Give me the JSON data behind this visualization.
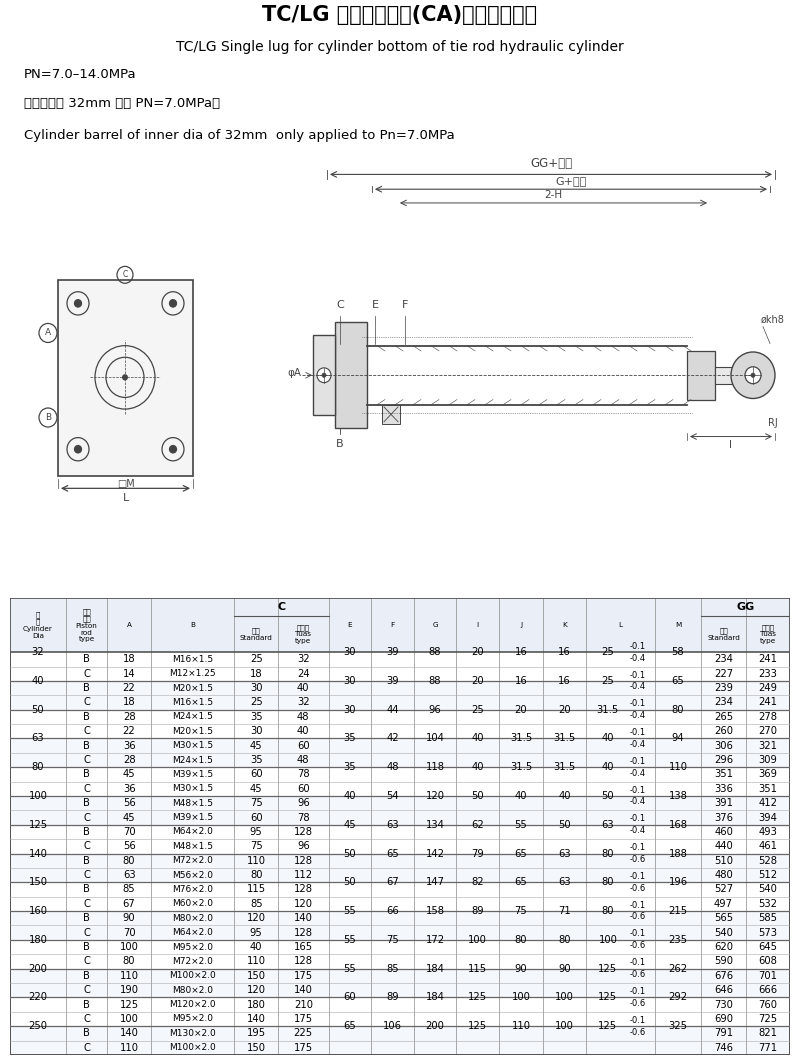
{
  "title_cn": "TC/LG 缸底单耳环型(CA)拉杆式液压缸",
  "title_en": "TC/LG Single lug for cylinder bottom of tie rod hydraulic cylinder",
  "subtitle1": "PN=7.0–14.0MPa",
  "subtitle2": "（缸筒内径 32mm 仅用 PN=7.0MPa）",
  "subtitle3": "Cylinder barrel of inner dia of 32mm  only applied to Pn=7.0MPa",
  "table_data": [
    [
      32,
      "B",
      18,
      "M16×1.5",
      25,
      32,
      30,
      39,
      88,
      20,
      16,
      16,
      "25",
      "-0.1\n-0.4",
      58,
      234,
      241
    ],
    [
      32,
      "C",
      14,
      "M12×1.25",
      18,
      24,
      30,
      39,
      88,
      20,
      16,
      16,
      "",
      "",
      58,
      227,
      233
    ],
    [
      40,
      "B",
      22,
      "M20×1.5",
      30,
      40,
      30,
      39,
      88,
      20,
      16,
      16,
      "25",
      "-0.1\n-0.4",
      65,
      239,
      249
    ],
    [
      40,
      "C",
      18,
      "M16×1.5",
      25,
      32,
      30,
      39,
      88,
      20,
      16,
      16,
      "",
      "",
      65,
      234,
      241
    ],
    [
      50,
      "B",
      28,
      "M24×1.5",
      35,
      48,
      30,
      44,
      96,
      25,
      20,
      20,
      "31.5",
      "-0.1\n-0.4",
      80,
      265,
      278
    ],
    [
      50,
      "C",
      22,
      "M20×1.5",
      30,
      40,
      30,
      44,
      96,
      25,
      20,
      20,
      "",
      "",
      80,
      260,
      270
    ],
    [
      63,
      "B",
      36,
      "M30×1.5",
      45,
      60,
      35,
      42,
      104,
      40,
      31.5,
      31.5,
      "40",
      "-0.1\n-0.4",
      94,
      306,
      321
    ],
    [
      63,
      "C",
      28,
      "M24×1.5",
      35,
      48,
      35,
      42,
      104,
      40,
      31.5,
      31.5,
      "",
      "",
      94,
      296,
      309
    ],
    [
      80,
      "B",
      45,
      "M39×1.5",
      60,
      78,
      35,
      48,
      118,
      40,
      31.5,
      31.5,
      "40",
      "-0.1\n-0.4",
      110,
      351,
      369
    ],
    [
      80,
      "C",
      36,
      "M30×1.5",
      45,
      60,
      35,
      48,
      118,
      40,
      31.5,
      31.5,
      "",
      "",
      110,
      336,
      351
    ],
    [
      100,
      "B",
      56,
      "M48×1.5",
      75,
      96,
      40,
      54,
      120,
      50,
      40,
      40,
      "50",
      "-0.1\n-0.4",
      138,
      391,
      412
    ],
    [
      100,
      "C",
      45,
      "M39×1.5",
      60,
      78,
      40,
      54,
      120,
      50,
      40,
      40,
      "",
      "",
      138,
      376,
      394
    ],
    [
      125,
      "B",
      70,
      "M64×2.0",
      95,
      128,
      45,
      63,
      134,
      62,
      55,
      50,
      "63",
      "-0.1\n-0.4",
      168,
      460,
      493
    ],
    [
      125,
      "C",
      56,
      "M48×1.5",
      75,
      96,
      45,
      63,
      134,
      62,
      55,
      50,
      "",
      "",
      168,
      440,
      461
    ],
    [
      140,
      "B",
      80,
      "M72×2.0",
      110,
      128,
      50,
      65,
      142,
      79,
      65,
      63,
      "80",
      "-0.1\n-0.6",
      188,
      510,
      528
    ],
    [
      140,
      "C",
      63,
      "M56×2.0",
      80,
      112,
      50,
      65,
      142,
      79,
      65,
      63,
      "",
      "",
      188,
      480,
      512
    ],
    [
      150,
      "B",
      85,
      "M76×2.0",
      115,
      128,
      50,
      67,
      147,
      82,
      65,
      63,
      "80",
      "-0.1\n-0.6",
      196,
      527,
      540
    ],
    [
      150,
      "C",
      67,
      "M60×2.0",
      85,
      120,
      50,
      67,
      147,
      82,
      65,
      63,
      "",
      "",
      196,
      497,
      532
    ],
    [
      160,
      "B",
      90,
      "M80×2.0",
      120,
      140,
      55,
      66,
      158,
      89,
      75,
      71,
      "80",
      "-0.1\n-0.6",
      215,
      565,
      585
    ],
    [
      160,
      "C",
      70,
      "M64×2.0",
      95,
      128,
      55,
      66,
      158,
      89,
      75,
      71,
      "",
      "",
      215,
      540,
      573
    ],
    [
      180,
      "B",
      100,
      "M95×2.0",
      40,
      165,
      55,
      75,
      172,
      100,
      80,
      80,
      "100",
      "-0.1\n-0.6",
      235,
      620,
      645
    ],
    [
      180,
      "C",
      80,
      "M72×2.0",
      110,
      128,
      55,
      75,
      172,
      100,
      80,
      80,
      "",
      "",
      235,
      590,
      608
    ],
    [
      200,
      "B",
      110,
      "M100×2.0",
      150,
      175,
      55,
      85,
      184,
      115,
      90,
      90,
      "125",
      "-0.1\n-0.6",
      262,
      676,
      701
    ],
    [
      200,
      "C",
      190,
      "M80×2.0",
      120,
      140,
      55,
      85,
      184,
      115,
      90,
      90,
      "",
      "",
      262,
      646,
      666
    ],
    [
      220,
      "B",
      125,
      "M120×2.0",
      180,
      210,
      60,
      89,
      184,
      125,
      100,
      100,
      "125",
      "-0.1\n-0.6",
      292,
      730,
      760
    ],
    [
      220,
      "C",
      100,
      "M95×2.0",
      140,
      175,
      60,
      89,
      184,
      125,
      100,
      100,
      "",
      "",
      292,
      690,
      725
    ],
    [
      250,
      "B",
      140,
      "M130×2.0",
      195,
      225,
      65,
      106,
      200,
      125,
      110,
      100,
      "125",
      "-0.1\n-0.6",
      325,
      791,
      821
    ],
    [
      250,
      "C",
      110,
      "M100×2.0",
      150,
      175,
      65,
      106,
      200,
      125,
      110,
      100,
      "",
      "",
      325,
      746,
      771
    ]
  ],
  "bg_color": "#ffffff",
  "text_color": "#000000",
  "title_fontsize": 15,
  "subtitle_fontsize": 9.5
}
